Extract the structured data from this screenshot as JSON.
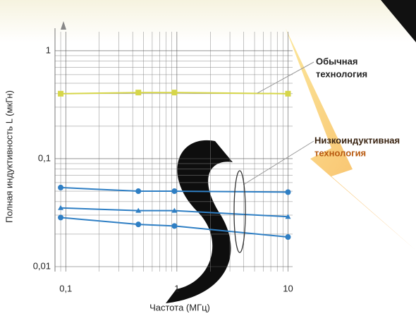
{
  "chart_data": {
    "type": "line",
    "x_label": "Частота (МГц)",
    "y_label": "Полная индуктивность L (мкГн)",
    "x": [
      0.09,
      0.45,
      0.95,
      10
    ],
    "series": [
      {
        "color": "#d6d64a",
        "marker": "square",
        "values": [
          0.4,
          0.41,
          0.41,
          0.4
        ]
      },
      {
        "color": "#2f7fc4",
        "marker": "circle",
        "values": [
          0.054,
          0.05,
          0.05,
          0.049
        ]
      },
      {
        "color": "#2f7fc4",
        "marker": "triangle",
        "values": [
          0.035,
          0.033,
          0.033,
          0.029
        ]
      },
      {
        "color": "#2f7fc4",
        "marker": "circle",
        "values": [
          0.0285,
          0.0246,
          0.0238,
          0.0188
        ]
      }
    ],
    "xscale": "log",
    "yscale": "log",
    "xlim": [
      0.08,
      11
    ],
    "ylim": [
      0.009,
      1.5
    ],
    "xticks": [
      {
        "value": 0.1,
        "label": "0,1"
      },
      1,
      10
    ],
    "yticks": [
      {
        "value": 0.01,
        "label": "0,01"
      },
      {
        "value": 0.1,
        "label": "0,1"
      },
      1
    ],
    "xticks_minor": [
      0.09,
      0.2,
      0.3,
      0.4,
      0.5,
      0.6,
      0.7,
      0.8,
      0.9,
      2,
      3,
      4,
      5,
      6,
      7,
      8,
      9
    ],
    "yticks_minor": [
      0.02,
      0.03,
      0.04,
      0.05,
      0.06,
      0.07,
      0.08,
      0.09,
      0.2,
      0.3,
      0.4,
      0.5,
      0.6,
      0.7,
      0.8,
      0.9
    ],
    "grid": true,
    "annotations": [
      {
        "lines": [
          "Обычная",
          "технология"
        ]
      },
      {
        "lines": [
          "Низкоиндуктивная",
          "технология"
        ]
      }
    ]
  }
}
